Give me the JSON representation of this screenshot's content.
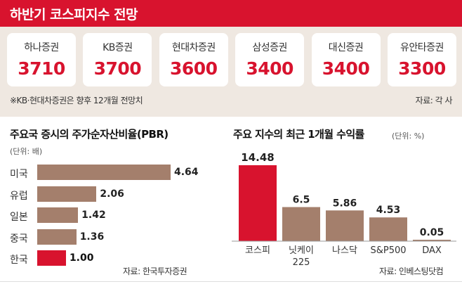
{
  "header": {
    "title": "하반기 코스피지수 전망"
  },
  "targets": [
    {
      "firm": "하나증권",
      "value": "3710"
    },
    {
      "firm": "KB증권",
      "value": "3700"
    },
    {
      "firm": "현대차증권",
      "value": "3600"
    },
    {
      "firm": "삼성증권",
      "value": "3400"
    },
    {
      "firm": "대신증권",
      "value": "3400"
    },
    {
      "firm": "유안타증권",
      "value": "3300"
    }
  ],
  "top_note": "※KB·현대차증권은 향후 12개월 전망치",
  "top_source": "자료: 각 사",
  "colors": {
    "accent": "#d8132e",
    "bar": "#a47f6c",
    "panel": "#efe8e1"
  },
  "chart_data": [
    {
      "type": "bar",
      "orientation": "horizontal",
      "title": "주요국 증시의 주가순자산비율(PBR)",
      "unit": "(단위: 배)",
      "categories": [
        "미국",
        "유럽",
        "일본",
        "중국",
        "한국"
      ],
      "values": [
        4.64,
        2.06,
        1.42,
        1.36,
        1.0
      ],
      "value_labels": [
        "4.64",
        "2.06",
        "1.42",
        "1.36",
        "1.00"
      ],
      "highlight": "한국",
      "source": "자료: 한국투자증권"
    },
    {
      "type": "bar",
      "orientation": "vertical",
      "title": "주요 지수의 최근 1개월 수익률",
      "unit": "(단위: %)",
      "categories": [
        "코스피",
        "닛케이 225",
        "나스닥",
        "S&P500",
        "DAX"
      ],
      "values": [
        14.48,
        6.5,
        5.86,
        4.53,
        0.05
      ],
      "value_labels": [
        "14.48",
        "6.5",
        "5.86",
        "4.53",
        "0.05"
      ],
      "highlight": "코스피",
      "source": "자료: 인베스팅닷컴"
    }
  ]
}
